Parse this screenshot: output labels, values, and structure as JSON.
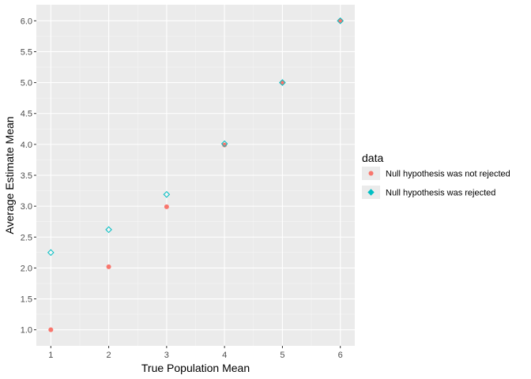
{
  "chart_data": {
    "type": "scatter",
    "xlabel": "True Population Mean",
    "ylabel": "Average Estimate Mean",
    "xlim": [
      0.75,
      6.25
    ],
    "ylim": [
      0.74,
      6.26
    ],
    "x_ticks": [
      1,
      2,
      3,
      4,
      5,
      6
    ],
    "x_tick_labels": [
      "1",
      "2",
      "3",
      "4",
      "5",
      "6"
    ],
    "y_ticks": [
      1.0,
      1.5,
      2.0,
      2.5,
      3.0,
      3.5,
      4.0,
      4.5,
      5.0,
      5.5,
      6.0
    ],
    "y_tick_labels": [
      "1.0",
      "1.5",
      "2.0",
      "2.5",
      "3.0",
      "3.5",
      "4.0",
      "4.5",
      "5.0",
      "5.5",
      "6.0"
    ],
    "grid": true,
    "background": "#ebebeb",
    "legend": {
      "title": "data",
      "position": "right"
    },
    "series": [
      {
        "name": "Null hypothesis was not rejected",
        "color": "#f8766d",
        "shape": "filled-circle",
        "points": [
          {
            "x": 1,
            "y": 1.0
          },
          {
            "x": 2,
            "y": 2.02
          },
          {
            "x": 3,
            "y": 2.99
          },
          {
            "x": 4,
            "y": 3.99
          },
          {
            "x": 5,
            "y": 5.0
          },
          {
            "x": 6,
            "y": 6.0
          }
        ]
      },
      {
        "name": "Null hypothesis was rejected",
        "color": "#00bfc4",
        "shape": "open-diamond",
        "points": [
          {
            "x": 1,
            "y": 2.25
          },
          {
            "x": 2,
            "y": 2.62
          },
          {
            "x": 3,
            "y": 3.19
          },
          {
            "x": 4,
            "y": 4.01
          },
          {
            "x": 5,
            "y": 5.0
          },
          {
            "x": 6,
            "y": 6.0
          }
        ]
      }
    ]
  }
}
